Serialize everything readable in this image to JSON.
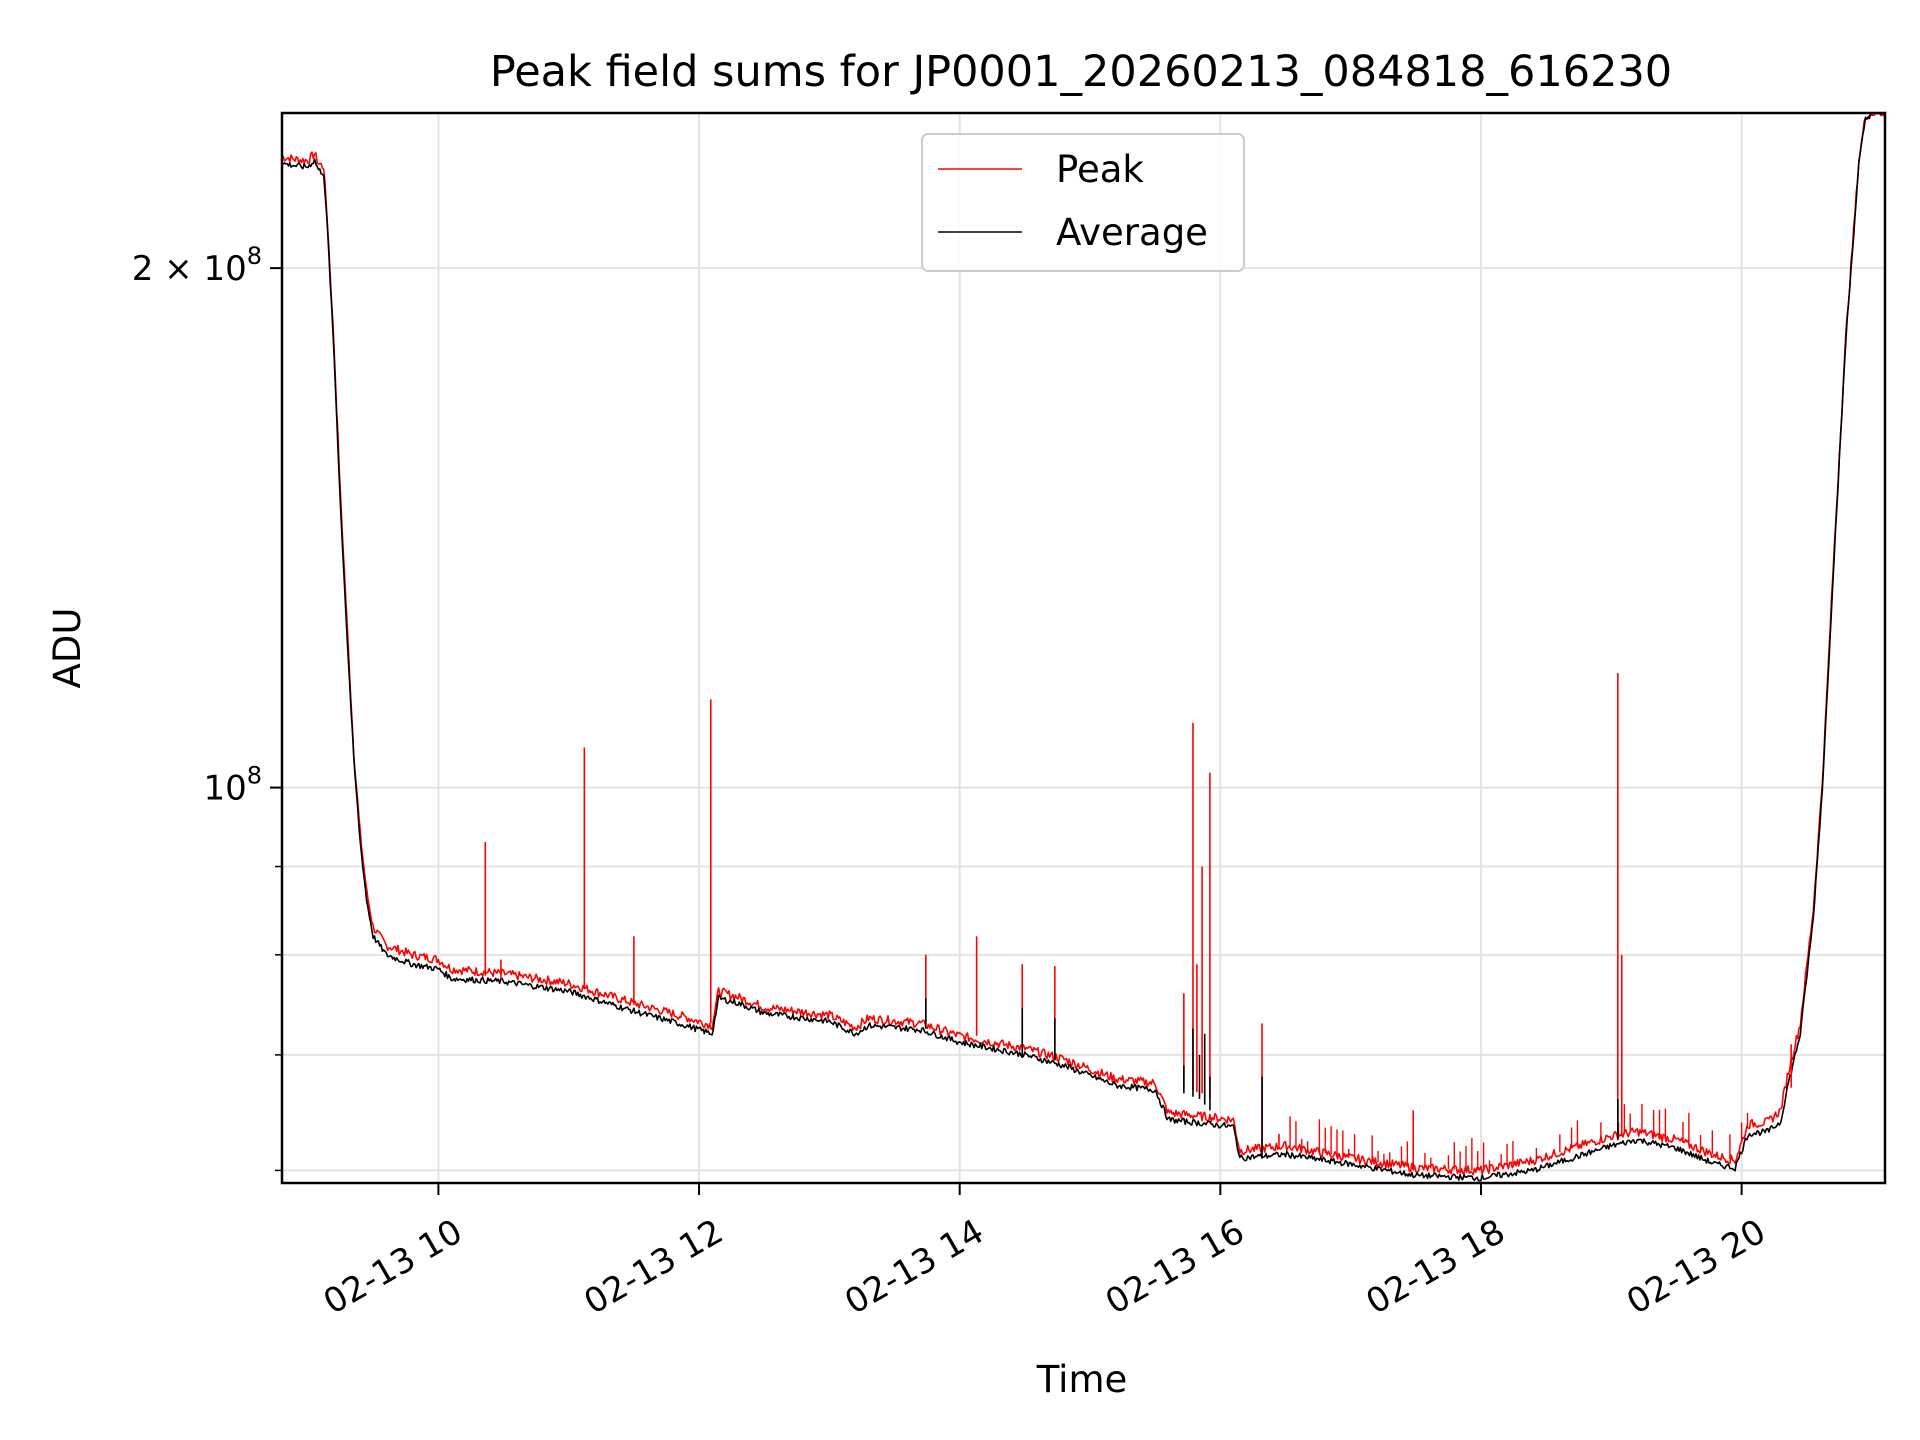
{
  "chart_data": {
    "type": "line",
    "title": "Peak field sums for JP0001_20260213_084818_616230",
    "xlabel": "Time",
    "ylabel": "ADU",
    "yscale": "log",
    "grid": true,
    "legend_position": "top-center",
    "x_unit": "hours",
    "xlim": [
      8.8,
      21.1
    ],
    "ylim": [
      59000000,
      246000000
    ],
    "x_ticks": [
      {
        "value": 10,
        "label": "02-13 10"
      },
      {
        "value": 12,
        "label": "02-13 12"
      },
      {
        "value": 14,
        "label": "02-13 14"
      },
      {
        "value": 16,
        "label": "02-13 16"
      },
      {
        "value": 18,
        "label": "02-13 18"
      },
      {
        "value": 20,
        "label": "02-13 20"
      }
    ],
    "y_major_ticks": [
      {
        "value": 100000000,
        "base": "10",
        "exp": "8",
        "prefix": ""
      },
      {
        "value": 200000000,
        "base": "10",
        "exp": "8",
        "prefix": "2 × "
      }
    ],
    "y_minor_ticks": [
      60000000,
      70000000,
      80000000,
      90000000
    ],
    "series": [
      {
        "name": "Average",
        "color": "#000000",
        "points": [
          [
            8.8,
            230000000.0
          ],
          [
            8.95,
            229000000.0
          ],
          [
            9.0,
            229000000.0
          ],
          [
            9.05,
            231000000.0
          ],
          [
            9.08,
            228000000.0
          ],
          [
            9.12,
            227000000.0
          ],
          [
            9.15,
            210000000.0
          ],
          [
            9.2,
            178000000.0
          ],
          [
            9.25,
            145000000.0
          ],
          [
            9.3,
            122000000.0
          ],
          [
            9.35,
            104000000.0
          ],
          [
            9.4,
            93000000.0
          ],
          [
            9.45,
            86000000.0
          ],
          [
            9.5,
            82000000.0
          ],
          [
            9.6,
            80000000.0
          ],
          [
            9.8,
            79000000.0
          ],
          [
            10.0,
            78500000.0
          ],
          [
            10.1,
            77500000.0
          ],
          [
            10.5,
            77200000.0
          ],
          [
            11.0,
            76200000.0
          ],
          [
            11.5,
            74200000.0
          ],
          [
            11.9,
            72800000.0
          ],
          [
            12.1,
            72000000.0
          ],
          [
            12.15,
            75500000.0
          ],
          [
            12.3,
            75000000.0
          ],
          [
            12.5,
            74000000.0
          ],
          [
            13.0,
            73200000.0
          ],
          [
            13.2,
            72000000.0
          ],
          [
            13.3,
            72800000.0
          ],
          [
            13.7,
            72400000.0
          ],
          [
            14.0,
            71200000.0
          ],
          [
            14.5,
            70000000.0
          ],
          [
            14.8,
            69000000.0
          ],
          [
            15.2,
            67200000.0
          ],
          [
            15.5,
            66800000.0
          ],
          [
            15.6,
            64200000.0
          ],
          [
            16.1,
            63600000.0
          ],
          [
            16.15,
            61000000.0
          ],
          [
            16.5,
            61300000.0
          ],
          [
            17.0,
            60500000.0
          ],
          [
            17.5,
            59600000.0
          ],
          [
            18.0,
            59400000.0
          ],
          [
            18.4,
            60000000.0
          ],
          [
            19.0,
            62000000.0
          ],
          [
            19.2,
            62500000.0
          ],
          [
            19.5,
            61800000.0
          ],
          [
            19.8,
            60500000.0
          ],
          [
            19.95,
            60200000.0
          ],
          [
            20.05,
            63000000.0
          ],
          [
            20.2,
            63200000.0
          ],
          [
            20.3,
            64000000.0
          ],
          [
            20.35,
            67000000.0
          ],
          [
            20.45,
            72000000.0
          ],
          [
            20.55,
            84000000.0
          ],
          [
            20.62,
            100000000.0
          ],
          [
            20.7,
            132000000.0
          ],
          [
            20.8,
            182000000.0
          ],
          [
            20.9,
            230000000.0
          ],
          [
            20.95,
            244000000.0
          ],
          [
            21.0,
            246000000.0
          ],
          [
            21.1,
            246000000.0
          ]
        ],
        "spikes": [
          [
            13.74,
            72500000.0,
            75500000.0
          ],
          [
            14.48,
            69800000.0,
            74500000.0
          ],
          [
            14.73,
            69500000.0,
            73500000.0
          ],
          [
            15.72,
            66500000.0,
            69000000.0
          ],
          [
            15.79,
            66200000.0,
            72500000.0
          ],
          [
            15.84,
            66000000.0,
            70000000.0
          ],
          [
            15.88,
            65500000.0,
            72000000.0
          ],
          [
            15.92,
            65000000.0,
            68000000.0
          ],
          [
            16.32,
            61000000.0,
            68000000.0
          ],
          [
            19.05,
            62500000.0,
            66000000.0
          ]
        ]
      },
      {
        "name": "Peak",
        "color": "#ff0000",
        "points": [
          [
            8.8,
            232000000.0
          ],
          [
            8.95,
            231000000.0
          ],
          [
            9.0,
            231000000.0
          ],
          [
            9.05,
            233000000.0
          ],
          [
            9.08,
            230000000.0
          ],
          [
            9.12,
            229000000.0
          ],
          [
            9.15,
            212000000.0
          ],
          [
            9.2,
            180000000.0
          ],
          [
            9.25,
            147000000.0
          ],
          [
            9.3,
            124000000.0
          ],
          [
            9.35,
            105000000.0
          ],
          [
            9.4,
            94000000.0
          ],
          [
            9.45,
            87000000.0
          ],
          [
            9.5,
            83000000.0
          ],
          [
            9.6,
            81000000.0
          ],
          [
            9.8,
            80000000.0
          ],
          [
            10.0,
            79500000.0
          ],
          [
            10.1,
            78500000.0
          ],
          [
            10.5,
            78000000.0
          ],
          [
            11.0,
            77000000.0
          ],
          [
            11.5,
            75000000.0
          ],
          [
            11.9,
            73600000.0
          ],
          [
            12.1,
            72800000.0
          ],
          [
            12.15,
            76200000.0
          ],
          [
            12.3,
            75600000.0
          ],
          [
            12.5,
            74600000.0
          ],
          [
            13.0,
            73800000.0
          ],
          [
            13.2,
            72600000.0
          ],
          [
            13.3,
            73500000.0
          ],
          [
            13.7,
            73000000.0
          ],
          [
            14.0,
            71800000.0
          ],
          [
            14.5,
            70600000.0
          ],
          [
            14.8,
            69600000.0
          ],
          [
            15.2,
            67800000.0
          ],
          [
            15.5,
            67400000.0
          ],
          [
            15.6,
            64800000.0
          ],
          [
            16.1,
            64200000.0
          ],
          [
            16.15,
            61600000.0
          ],
          [
            16.5,
            62000000.0
          ],
          [
            17.0,
            61000000.0
          ],
          [
            17.5,
            60200000.0
          ],
          [
            18.0,
            60000000.0
          ],
          [
            18.4,
            60800000.0
          ],
          [
            19.0,
            62800000.0
          ],
          [
            19.2,
            63200000.0
          ],
          [
            19.5,
            62500000.0
          ],
          [
            19.8,
            61200000.0
          ],
          [
            19.95,
            60800000.0
          ],
          [
            20.05,
            63800000.0
          ],
          [
            20.2,
            64000000.0
          ],
          [
            20.3,
            65000000.0
          ],
          [
            20.35,
            68000000.0
          ],
          [
            20.45,
            73000000.0
          ],
          [
            20.55,
            85000000.0
          ],
          [
            20.62,
            101000000.0
          ],
          [
            20.7,
            133000000.0
          ],
          [
            20.8,
            183000000.0
          ],
          [
            20.9,
            231000000.0
          ],
          [
            20.95,
            245000000.0
          ],
          [
            21.0,
            246000000.0
          ],
          [
            21.1,
            246000000.0
          ]
        ],
        "spikes": [
          [
            10.36,
            77800000.0,
            93000000.0
          ],
          [
            10.48,
            77500000.0,
            79500000.0
          ],
          [
            11.12,
            76500000.0,
            105500000.0
          ],
          [
            11.5,
            74800000.0,
            82000000.0
          ],
          [
            12.09,
            73000000.0,
            112500000.0
          ],
          [
            13.74,
            73000000.0,
            80000000.0
          ],
          [
            14.13,
            71800000.0,
            82000000.0
          ],
          [
            14.48,
            70500000.0,
            79000000.0
          ],
          [
            14.73,
            69500000.0,
            78800000.0
          ],
          [
            15.72,
            67000000.0,
            76000000.0
          ],
          [
            15.79,
            66800000.0,
            109000000.0
          ],
          [
            15.82,
            66600000.0,
            79000000.0
          ],
          [
            15.86,
            66500000.0,
            90000000.0
          ],
          [
            15.92,
            66000000.0,
            102000000.0
          ],
          [
            16.32,
            61500000.0,
            73000000.0
          ],
          [
            16.45,
            61800000.0,
            63000000.0
          ],
          [
            17.48,
            60200000.0,
            65000000.0
          ],
          [
            19.05,
            62800000.0,
            116500000.0
          ],
          [
            19.08,
            62800000.0,
            80000000.0
          ],
          [
            20.38,
            67000000.0,
            71000000.0
          ]
        ]
      }
    ]
  }
}
